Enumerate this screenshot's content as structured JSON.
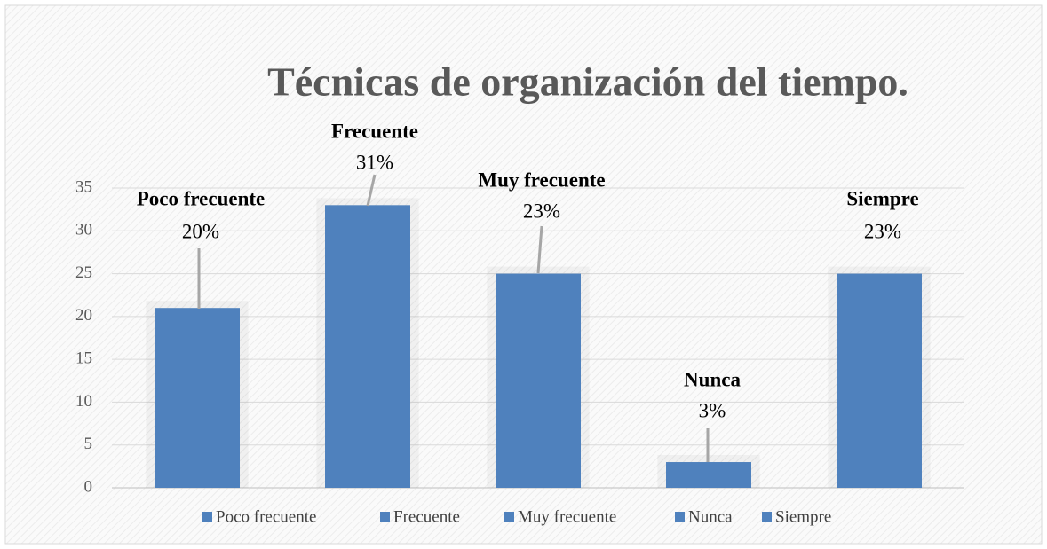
{
  "chart_data": {
    "type": "bar",
    "title": "Técnicas de organización del tiempo.",
    "categories": [
      "Poco frecuente",
      "Frecuente",
      "Muy frecuente",
      "Nunca",
      "Siempre"
    ],
    "values": [
      21,
      33,
      25,
      3,
      25
    ],
    "percent_labels": [
      {
        "value": 20,
        "label": "20%"
      },
      {
        "value": 31,
        "label": "31%"
      },
      {
        "value": 23,
        "label": "23%"
      },
      {
        "value": 3,
        "label": "3%"
      },
      {
        "value": 23,
        "label": "23%"
      }
    ],
    "color": "#4f81bd",
    "ylim": [
      0,
      35
    ],
    "yticks": [
      0,
      5,
      10,
      15,
      20,
      25,
      30,
      35
    ],
    "grid": true,
    "legend": "bottom"
  }
}
